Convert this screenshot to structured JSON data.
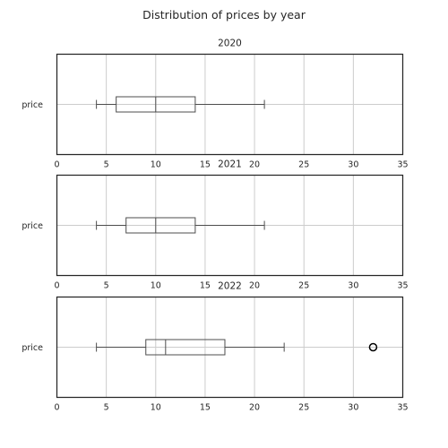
{
  "chart_data": {
    "type": "boxplot",
    "title": "Distribution of prices by year",
    "orientation": "horizontal",
    "xlim": [
      0,
      35
    ],
    "xticks": [
      0,
      5,
      10,
      15,
      20,
      25,
      30,
      35
    ],
    "grid": true,
    "subplots": [
      {
        "title": "2020",
        "category": "price",
        "whisker_low": 4,
        "q1": 6,
        "median": 10,
        "q3": 14,
        "whisker_high": 21,
        "outliers": []
      },
      {
        "title": "2021",
        "category": "price",
        "whisker_low": 4,
        "q1": 7,
        "median": 10,
        "q3": 14,
        "whisker_high": 21,
        "outliers": []
      },
      {
        "title": "2022",
        "category": "price",
        "whisker_low": 4,
        "q1": 9,
        "median": 11,
        "q3": 17,
        "whisker_high": 23,
        "outliers": [
          32
        ]
      }
    ]
  },
  "colors": {
    "box": "#4d4d4d",
    "grid": "#cccccc",
    "frame": "#262626",
    "outlier": "#000000"
  }
}
